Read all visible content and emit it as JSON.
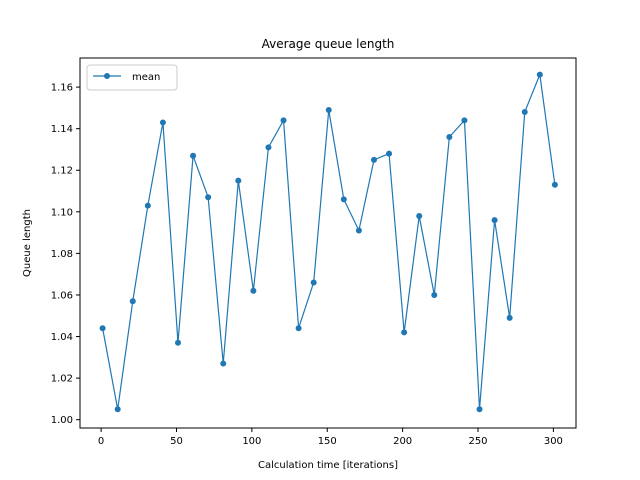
{
  "chart_data": {
    "type": "line",
    "title": "Average queue length",
    "xlabel": "Calculation time [iterations]",
    "ylabel": "Queue length",
    "xlim": [
      -14,
      315
    ],
    "ylim": [
      0.996,
      1.174
    ],
    "xticks": [
      0,
      50,
      100,
      150,
      200,
      250,
      300
    ],
    "yticks": [
      1.0,
      1.02,
      1.04,
      1.06,
      1.08,
      1.1,
      1.12,
      1.14,
      1.16
    ],
    "ytick_labels": [
      "1.00",
      "1.02",
      "1.04",
      "1.06",
      "1.08",
      "1.10",
      "1.12",
      "1.14",
      "1.16"
    ],
    "grid": false,
    "legend": {
      "position": "upper-left",
      "entries": [
        "mean"
      ]
    },
    "series": [
      {
        "name": "mean",
        "color": "#1f77b4",
        "marker": "circle",
        "x": [
          1,
          11,
          21,
          31,
          41,
          51,
          61,
          71,
          81,
          91,
          101,
          111,
          121,
          131,
          141,
          151,
          161,
          171,
          181,
          191,
          201,
          211,
          221,
          231,
          241,
          251,
          261,
          271,
          281,
          291,
          301
        ],
        "y": [
          1.044,
          1.005,
          1.057,
          1.103,
          1.143,
          1.037,
          1.127,
          1.107,
          1.027,
          1.115,
          1.062,
          1.131,
          1.144,
          1.044,
          1.066,
          1.149,
          1.106,
          1.091,
          1.125,
          1.128,
          1.042,
          1.098,
          1.06,
          1.136,
          1.144,
          1.005,
          1.096,
          1.049,
          1.148,
          1.166,
          1.113
        ]
      }
    ]
  }
}
